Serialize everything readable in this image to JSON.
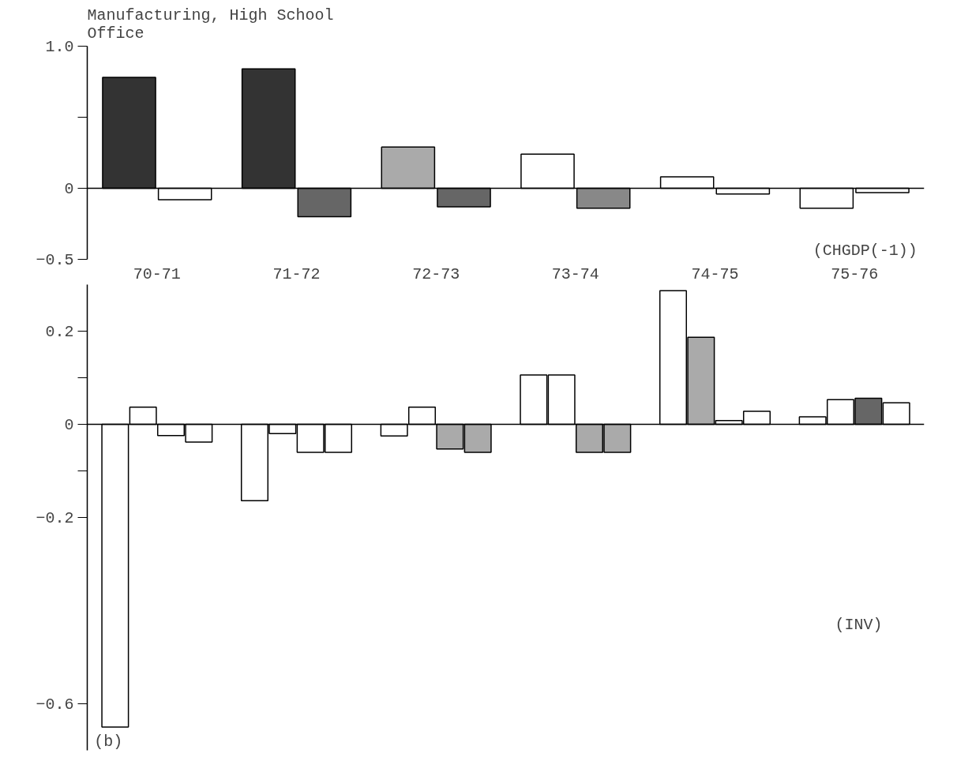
{
  "chart_data": [
    {
      "type": "bar",
      "title": "Manufacturing, High School\nOffice",
      "categories": [
        "70-71",
        "71-72",
        "72-73",
        "73-74",
        "74-75",
        "75-76"
      ],
      "series": [
        {
          "colors": [
            "#333333",
            "#333333",
            "#aaaaaa",
            "#ffffff",
            "#ffffff",
            "#ffffff"
          ],
          "values": [
            0.78,
            0.84,
            0.29,
            0.24,
            0.08,
            -0.14
          ]
        },
        {
          "colors": [
            "#ffffff",
            "#666666",
            "#666666",
            "#888888",
            "#ffffff",
            "#ffffff"
          ],
          "values": [
            -0.08,
            -0.2,
            -0.13,
            -0.14,
            -0.04,
            -0.03
          ]
        }
      ],
      "ylim": [
        -0.5,
        1.0
      ],
      "yticks": [
        {
          "value": 1.0,
          "label": "1.0"
        },
        {
          "value": 0.5,
          "label": null
        },
        0,
        -0.5
      ],
      "annotations": [
        "(CHGDP(-1))"
      ]
    },
    {
      "type": "bar",
      "categories": [
        null,
        null,
        null,
        null,
        null,
        null
      ],
      "tick_labels": "y",
      "series": [
        {
          "colors": [
            "#ffffff",
            "#ffffff",
            "#ffffff",
            "#ffffff",
            "#ffffff",
            "#ffffff"
          ],
          "values": [
            -0.65,
            -0.164,
            -0.025,
            0.106,
            0.287,
            0.016
          ]
        },
        {
          "colors": [
            "#ffffff",
            "#ffffff",
            "#ffffff",
            "#ffffff",
            "#aaaaaa",
            "#ffffff"
          ],
          "values": [
            0.037,
            -0.02,
            0.037,
            0.106,
            0.187,
            0.053
          ]
        },
        {
          "colors": [
            "#ffffff",
            "#ffffff",
            "#aaaaaa",
            "#aaaaaa",
            "#ffffff",
            "#666666"
          ],
          "values": [
            -0.024,
            -0.06,
            -0.053,
            -0.06,
            0.008,
            0.056
          ]
        },
        {
          "colors": [
            "#ffffff",
            "#ffffff",
            "#aaaaaa",
            "#aaaaaa",
            "#ffffff",
            "#ffffff"
          ],
          "values": [
            -0.038,
            -0.06,
            -0.06,
            -0.06,
            0.028,
            0.046
          ]
        }
      ],
      "ylim": [
        -0.7,
        0.3
      ],
      "yticks": [
        0.2,
        {
          "value": 0.1,
          "label": null
        },
        0,
        {
          "value": -0.1,
          "label": null
        },
        -0.2,
        -0.6
      ],
      "annotations": [
        "(INV)",
        "(b)"
      ]
    }
  ]
}
